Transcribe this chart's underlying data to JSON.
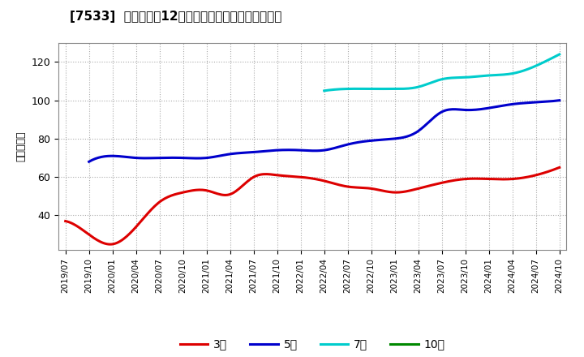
{
  "title": "[7533]  当期純利益12か月移動合計の標準偏差の推移",
  "ylabel": "（百万円）",
  "background_color": "#ffffff",
  "plot_background_color": "#ffffff",
  "grid_color": "#aaaaaa",
  "ylim": [
    22,
    130
  ],
  "yticks": [
    40,
    60,
    80,
    100,
    120
  ],
  "x_labels": [
    "2019/07",
    "2019/10",
    "2020/01",
    "2020/04",
    "2020/07",
    "2020/10",
    "2021/01",
    "2021/04",
    "2021/07",
    "2021/10",
    "2022/01",
    "2022/04",
    "2022/07",
    "2022/10",
    "2023/01",
    "2023/04",
    "2023/07",
    "2023/10",
    "2024/01",
    "2024/04",
    "2024/07",
    "2024/10"
  ],
  "series": {
    "3年": {
      "color": "#dd0000",
      "data_x": [
        0,
        1,
        2,
        3,
        4,
        5,
        6,
        7,
        8,
        9,
        10,
        11,
        12,
        13,
        14,
        15,
        16,
        17,
        18,
        19,
        20,
        21
      ],
      "data_y": [
        37,
        30,
        25,
        34,
        47,
        52,
        53,
        51,
        60,
        61,
        60,
        58,
        55,
        54,
        52,
        54,
        57,
        59,
        59,
        59,
        61,
        65
      ]
    },
    "5年": {
      "color": "#0000cc",
      "data_x": [
        1,
        2,
        3,
        4,
        5,
        6,
        7,
        8,
        9,
        10,
        11,
        12,
        13,
        14,
        15,
        16,
        17,
        18,
        19,
        20,
        21
      ],
      "data_y": [
        68,
        71,
        70,
        70,
        70,
        70,
        72,
        73,
        74,
        74,
        74,
        77,
        79,
        80,
        84,
        94,
        95,
        96,
        98,
        99,
        100
      ]
    },
    "7年": {
      "color": "#00cccc",
      "data_x": [
        11,
        12,
        13,
        14,
        15,
        16,
        17,
        18,
        19,
        20,
        21
      ],
      "data_y": [
        105,
        106,
        106,
        106,
        107,
        111,
        112,
        113,
        114,
        118,
        124
      ]
    },
    "10年": {
      "color": "#008800",
      "data_x": [],
      "data_y": []
    }
  },
  "legend_labels": [
    "3年",
    "5年",
    "7年",
    "10年"
  ],
  "legend_colors": [
    "#dd0000",
    "#0000cc",
    "#00cccc",
    "#008800"
  ]
}
